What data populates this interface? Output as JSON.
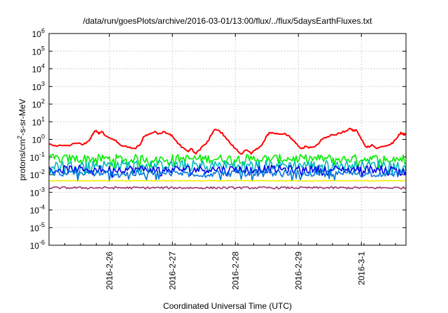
{
  "chart_data": {
    "type": "line",
    "title": "/data/run/goesPlots/archive/2016-03-01/13:00/flux/../flux/5daysEarthFluxes.txt",
    "xlabel": "Coordinated Universal Time (UTC)",
    "ylabel_parts": [
      "protons/cm",
      "2",
      "-s-sr-MeV"
    ],
    "y_scale": "log",
    "ylim": [
      1e-06,
      1000000.0
    ],
    "x_range": [
      "2016-02-25T01:00",
      "2016-03-01T17:00"
    ],
    "x_ticks": [
      {
        "label": "2016-2-26",
        "date": "2016-02-26"
      },
      {
        "label": "2016-2-27",
        "date": "2016-02-27"
      },
      {
        "label": "2016-2-28",
        "date": "2016-02-28"
      },
      {
        "label": "2016-2-29",
        "date": "2016-02-29"
      },
      {
        "label": "2016-3-1",
        "date": "2016-03-01"
      }
    ],
    "y_ticks": [
      {
        "base": "10",
        "exp": "-6",
        "value": 1e-06
      },
      {
        "base": "10",
        "exp": "-5",
        "value": 1e-05
      },
      {
        "base": "10",
        "exp": "-4",
        "value": 0.0001
      },
      {
        "base": "10",
        "exp": "-3",
        "value": 0.001
      },
      {
        "base": "10",
        "exp": "-2",
        "value": 0.01
      },
      {
        "base": "10",
        "exp": "-1",
        "value": 0.1
      },
      {
        "base": "10",
        "exp": "0",
        "value": 1
      },
      {
        "base": "10",
        "exp": "1",
        "value": 10
      },
      {
        "base": "10",
        "exp": "2",
        "value": 100
      },
      {
        "base": "10",
        "exp": "3",
        "value": 1000
      },
      {
        "base": "10",
        "exp": "4",
        "value": 10000
      },
      {
        "base": "10",
        "exp": "5",
        "value": 100000
      },
      {
        "base": "10",
        "exp": "6",
        "value": 1000000
      }
    ],
    "grid": true,
    "series": [
      {
        "color": "#ff0000",
        "points": [
          [
            "2016-02-25T01:00",
            0.55
          ],
          [
            "2016-02-25T04:00",
            0.4
          ],
          [
            "2016-02-25T08:00",
            0.45
          ],
          [
            "2016-02-25T12:00",
            0.6
          ],
          [
            "2016-02-25T14:00",
            0.5
          ],
          [
            "2016-02-25T16:00",
            0.8
          ],
          [
            "2016-02-25T17:00",
            1.2
          ],
          [
            "2016-02-25T18:00",
            2.5
          ],
          [
            "2016-02-25T19:00",
            3.2
          ],
          [
            "2016-02-25T20:00",
            2.0
          ],
          [
            "2016-02-25T21:00",
            2.8
          ],
          [
            "2016-02-25T23:00",
            1.5
          ],
          [
            "2016-02-26T02:00",
            0.9
          ],
          [
            "2016-02-26T04:00",
            0.5
          ],
          [
            "2016-02-26T07:00",
            0.35
          ],
          [
            "2016-02-26T10:00",
            0.3
          ],
          [
            "2016-02-26T12:00",
            0.6
          ],
          [
            "2016-02-26T13:00",
            1.4
          ],
          [
            "2016-02-26T15:00",
            2.0
          ],
          [
            "2016-02-26T17:00",
            2.6
          ],
          [
            "2016-02-26T19:00",
            2.2
          ],
          [
            "2016-02-26T21:00",
            2.8
          ],
          [
            "2016-02-26T23:00",
            2.0
          ],
          [
            "2016-02-27T00:00",
            1.5
          ],
          [
            "2016-02-27T02:00",
            0.6
          ],
          [
            "2016-02-27T04:00",
            0.35
          ],
          [
            "2016-02-27T06:00",
            0.2
          ],
          [
            "2016-02-27T07:00",
            0.3
          ],
          [
            "2016-02-27T09:00",
            0.15
          ],
          [
            "2016-02-27T11:00",
            0.35
          ],
          [
            "2016-02-27T13:00",
            0.6
          ],
          [
            "2016-02-27T14:00",
            1.0
          ],
          [
            "2016-02-27T15:00",
            2.0
          ],
          [
            "2016-02-27T16:00",
            3.5
          ],
          [
            "2016-02-27T18:00",
            3.0
          ],
          [
            "2016-02-27T20:00",
            1.5
          ],
          [
            "2016-02-27T22:00",
            0.6
          ],
          [
            "2016-02-28T00:00",
            0.3
          ],
          [
            "2016-02-28T02:00",
            0.15
          ],
          [
            "2016-02-28T04:00",
            0.25
          ],
          [
            "2016-02-28T06:00",
            0.15
          ],
          [
            "2016-02-28T08:00",
            0.3
          ],
          [
            "2016-02-28T10:00",
            0.45
          ],
          [
            "2016-02-28T11:00",
            0.8
          ],
          [
            "2016-02-28T12:00",
            1.6
          ],
          [
            "2016-02-28T13:00",
            2.5
          ],
          [
            "2016-02-28T15:00",
            2.2
          ],
          [
            "2016-02-28T17:00",
            2.0
          ],
          [
            "2016-02-28T19:00",
            2.2
          ],
          [
            "2016-02-28T21:00",
            1.2
          ],
          [
            "2016-02-28T23:00",
            0.6
          ],
          [
            "2016-02-29T01:00",
            0.3
          ],
          [
            "2016-02-29T03:00",
            0.4
          ],
          [
            "2016-02-29T05:00",
            0.35
          ],
          [
            "2016-02-29T07:00",
            0.5
          ],
          [
            "2016-02-29T09:00",
            1.0
          ],
          [
            "2016-02-29T11:00",
            1.4
          ],
          [
            "2016-02-29T13:00",
            1.8
          ],
          [
            "2016-02-29T16:00",
            2.2
          ],
          [
            "2016-02-29T18:00",
            3.0
          ],
          [
            "2016-02-29T20:00",
            4.0
          ],
          [
            "2016-02-29T21:00",
            3.0
          ],
          [
            "2016-02-29T22:00",
            3.5
          ],
          [
            "2016-03-01T00:00",
            1.0
          ],
          [
            "2016-03-01T02:00",
            0.35
          ],
          [
            "2016-03-01T04:00",
            0.5
          ],
          [
            "2016-03-01T06:00",
            0.3
          ],
          [
            "2016-03-01T08:00",
            0.4
          ],
          [
            "2016-03-01T10:00",
            0.45
          ],
          [
            "2016-03-01T12:00",
            0.6
          ],
          [
            "2016-03-01T14:00",
            1.5
          ],
          [
            "2016-03-01T15:00",
            2.5
          ],
          [
            "2016-03-01T16:00",
            1.8
          ],
          [
            "2016-03-01T17:00",
            2.2
          ]
        ]
      },
      {
        "color": "#00ee00",
        "base": 0.08,
        "amplitude": 0.5
      },
      {
        "color": "#00bbbb",
        "base": 0.035,
        "amplitude": 0.55
      },
      {
        "color": "#0000ee",
        "base": 0.02,
        "amplitude": 0.45
      },
      {
        "color": "#0077dd",
        "base": 0.012,
        "amplitude": 0.4
      },
      {
        "color": "#eeee00",
        "base": 0.0045,
        "amplitude": 0.05
      },
      {
        "color": "#993366",
        "base": 0.0018,
        "amplitude": 0.12
      }
    ]
  }
}
